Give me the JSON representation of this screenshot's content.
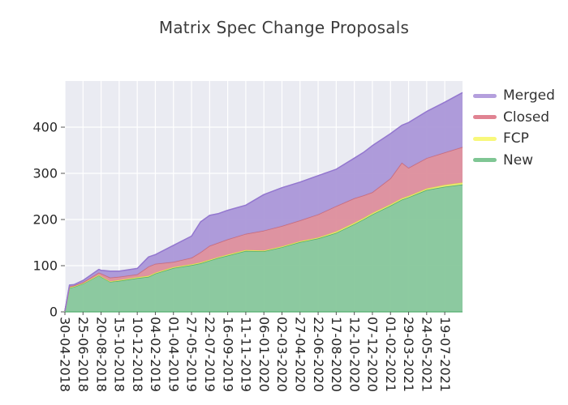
{
  "title": "Matrix Spec Change Proposals",
  "chart_data": {
    "type": "area",
    "stacked": true,
    "title": "Matrix Spec Change Proposals",
    "xlabel": "",
    "ylabel": "",
    "grid": true,
    "legend_position": "right",
    "plot_bg": "#eaebf2",
    "grid_color": "#ffffff",
    "tick_text_color": "#262626",
    "title_color": "#3c3c3c",
    "ylim": [
      0,
      500
    ],
    "yticks": [
      0,
      100,
      200,
      300,
      400
    ],
    "xticks": [
      "30-04-2018",
      "25-06-2018",
      "20-08-2018",
      "15-10-2018",
      "10-12-2018",
      "04-02-2019",
      "01-04-2019",
      "27-05-2019",
      "22-07-2019",
      "16-09-2019",
      "11-11-2019",
      "06-01-2020",
      "02-03-2020",
      "27-04-2020",
      "22-06-2020",
      "17-08-2020",
      "12-10-2020",
      "07-12-2020",
      "01-02-2021",
      "29-03-2021",
      "24-05-2021",
      "19-07-2021"
    ],
    "x": [
      "30-04-2018",
      "14-05-2018",
      "28-05-2018",
      "25-06-2018",
      "13-08-2018",
      "20-08-2018",
      "17-09-2018",
      "15-10-2018",
      "10-12-2018",
      "14-01-2019",
      "04-02-2019",
      "01-04-2019",
      "27-05-2019",
      "24-06-2019",
      "22-07-2019",
      "19-08-2019",
      "16-09-2019",
      "11-11-2019",
      "06-01-2020",
      "02-03-2020",
      "27-04-2020",
      "22-06-2020",
      "17-08-2020",
      "12-10-2020",
      "09-11-2020",
      "07-12-2020",
      "01-02-2021",
      "08-03-2021",
      "29-03-2021",
      "24-05-2021",
      "19-07-2021",
      "12-09-2021"
    ],
    "series": [
      {
        "name": "New",
        "fill": "#87c79b",
        "edge": "#52ad6d",
        "legend_color": "#7fc694",
        "values": [
          2,
          52,
          54,
          61,
          79,
          76,
          65,
          67,
          73,
          76,
          83,
          95,
          101,
          105,
          111,
          117,
          122,
          132,
          131,
          140,
          151,
          159,
          171,
          190,
          200,
          211,
          230,
          243,
          248,
          264,
          271,
          276
        ]
      },
      {
        "name": "FCP",
        "fill": "#ebeb72",
        "edge": "#e0e052",
        "legend_color": "#f8f87b",
        "values": [
          0,
          1,
          1,
          1,
          1,
          1,
          1,
          2,
          2,
          2,
          2,
          2,
          2,
          2,
          2,
          2,
          2,
          2,
          2,
          2,
          2,
          2,
          3,
          3,
          3,
          3,
          3,
          3,
          3,
          3,
          4,
          4
        ]
      },
      {
        "name": "Closed",
        "fill": "#dd8e9c",
        "edge": "#c96a79",
        "legend_color": "#e08392",
        "values": [
          0,
          2,
          2,
          2,
          5,
          6,
          8,
          7,
          6,
          20,
          19,
          11,
          14,
          22,
          30,
          31,
          33,
          35,
          43,
          44,
          45,
          50,
          55,
          53,
          49,
          45,
          56,
          77,
          61,
          66,
          70,
          77
        ]
      },
      {
        "name": "Merged",
        "fill": "#ab97d8",
        "edge": "#9377cf",
        "legend_color": "#b49fdd",
        "values": [
          0,
          3,
          2,
          4,
          7,
          7,
          14,
          12,
          13,
          21,
          20,
          36,
          47,
          66,
          66,
          63,
          63,
          62,
          78,
          83,
          83,
          84,
          80,
          87,
          93,
          101,
          97,
          81,
          98,
          101,
          109,
          118
        ]
      }
    ],
    "legend_order": [
      "Merged",
      "Closed",
      "FCP",
      "New"
    ]
  }
}
